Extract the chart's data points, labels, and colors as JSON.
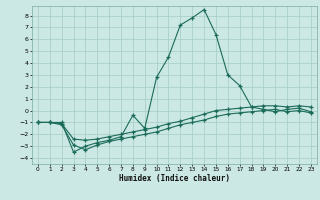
{
  "title": "",
  "xlabel": "Humidex (Indice chaleur)",
  "bg_color": "#cce8e4",
  "grid_color": "#aacfcb",
  "line_color": "#1a6b5a",
  "xlim": [
    -0.5,
    23.5
  ],
  "ylim": [
    -4.5,
    8.8
  ],
  "xticks": [
    0,
    1,
    2,
    3,
    4,
    5,
    6,
    7,
    8,
    9,
    10,
    11,
    12,
    13,
    14,
    15,
    16,
    17,
    18,
    19,
    20,
    21,
    22,
    23
  ],
  "yticks": [
    -4,
    -3,
    -2,
    -1,
    0,
    1,
    2,
    3,
    4,
    5,
    6,
    7,
    8
  ],
  "line1_x": [
    0,
    1,
    2,
    3,
    4,
    5,
    6,
    7,
    8,
    9,
    10,
    11,
    12,
    13,
    14,
    15,
    16,
    17,
    18,
    19,
    20,
    21,
    22,
    23
  ],
  "line1_y": [
    -1.0,
    -1.0,
    -1.0,
    -3.5,
    -3.0,
    -2.7,
    -2.5,
    -2.2,
    -0.4,
    -1.5,
    2.8,
    4.5,
    7.2,
    7.8,
    8.5,
    6.4,
    3.0,
    2.1,
    0.3,
    0.1,
    -0.1,
    0.1,
    0.2,
    -0.1
  ],
  "line2_x": [
    0,
    1,
    2,
    3,
    4,
    5,
    6,
    7,
    8,
    9,
    10,
    11,
    12,
    13,
    14,
    15,
    16,
    17,
    18,
    19,
    20,
    21,
    22,
    23
  ],
  "line2_y": [
    -1.0,
    -1.0,
    -1.1,
    -2.4,
    -2.5,
    -2.4,
    -2.2,
    -2.0,
    -1.8,
    -1.6,
    -1.4,
    -1.1,
    -0.9,
    -0.6,
    -0.3,
    0.0,
    0.1,
    0.2,
    0.3,
    0.4,
    0.4,
    0.3,
    0.4,
    0.3
  ],
  "line3_x": [
    0,
    1,
    2,
    3,
    4,
    5,
    6,
    7,
    8,
    9,
    10,
    11,
    12,
    13,
    14,
    15,
    16,
    17,
    18,
    19,
    20,
    21,
    22,
    23
  ],
  "line3_y": [
    -1.0,
    -1.0,
    -1.2,
    -2.9,
    -3.3,
    -2.9,
    -2.6,
    -2.4,
    -2.2,
    -2.0,
    -1.8,
    -1.5,
    -1.2,
    -1.0,
    -0.8,
    -0.5,
    -0.3,
    -0.2,
    -0.1,
    0.0,
    0.1,
    -0.1,
    0.0,
    -0.2
  ]
}
